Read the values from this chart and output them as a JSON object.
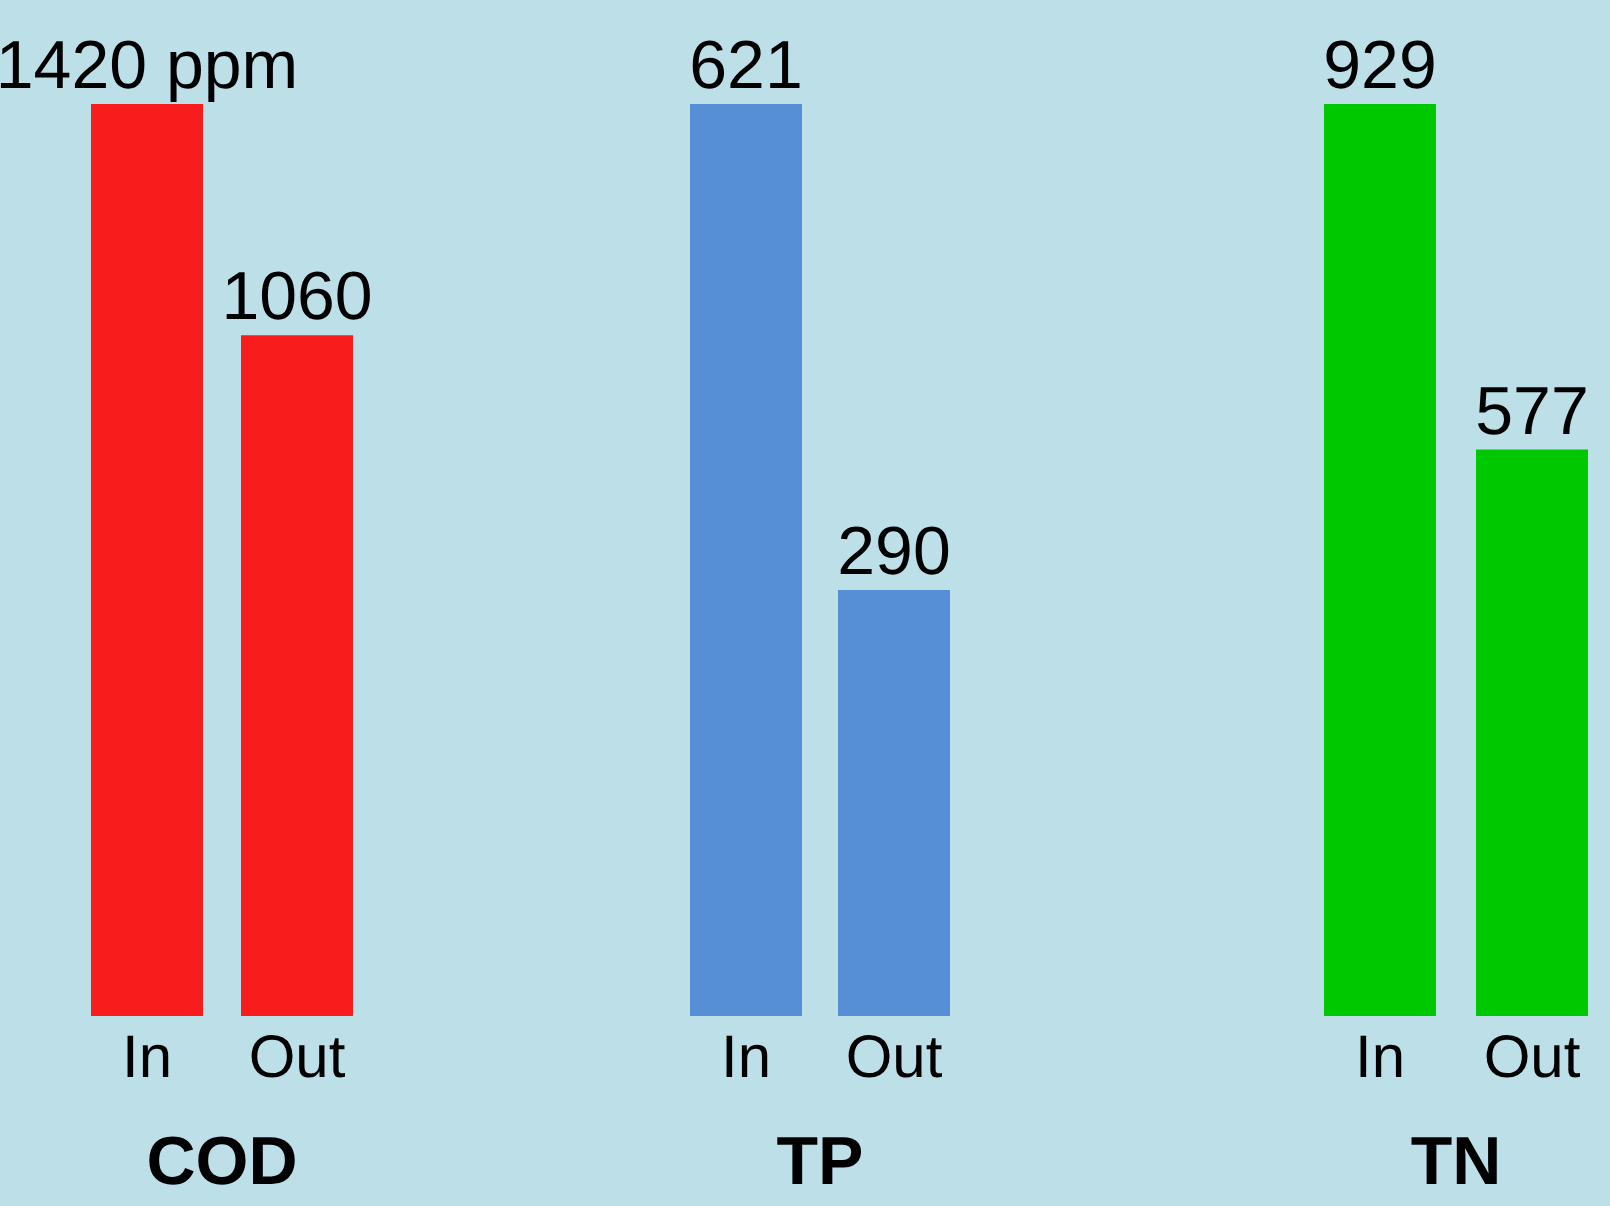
{
  "chart_data": [
    {
      "type": "bar",
      "categories": [
        "In",
        "Out"
      ],
      "values": [
        1420,
        1060
      ],
      "color": "#f81c1c",
      "value_labels": [
        "1420 ppm",
        "1060"
      ],
      "xlabel": "COD",
      "ylim": [
        0,
        1420
      ],
      "tick_labels": "x"
    },
    {
      "type": "bar",
      "categories": [
        "In",
        "Out"
      ],
      "values": [
        621,
        290
      ],
      "color": "#578fd6",
      "value_labels": [
        "621",
        "290"
      ],
      "xlabel": "TP",
      "ylim": [
        0,
        621
      ],
      "tick_labels": "x"
    },
    {
      "type": "bar",
      "categories": [
        "In",
        "Out"
      ],
      "values": [
        929,
        577
      ],
      "color": "#00c800",
      "value_labels": [
        "929",
        "577"
      ],
      "xlabel": "TN",
      "ylim": [
        0,
        929
      ],
      "tick_labels": "x"
    }
  ]
}
